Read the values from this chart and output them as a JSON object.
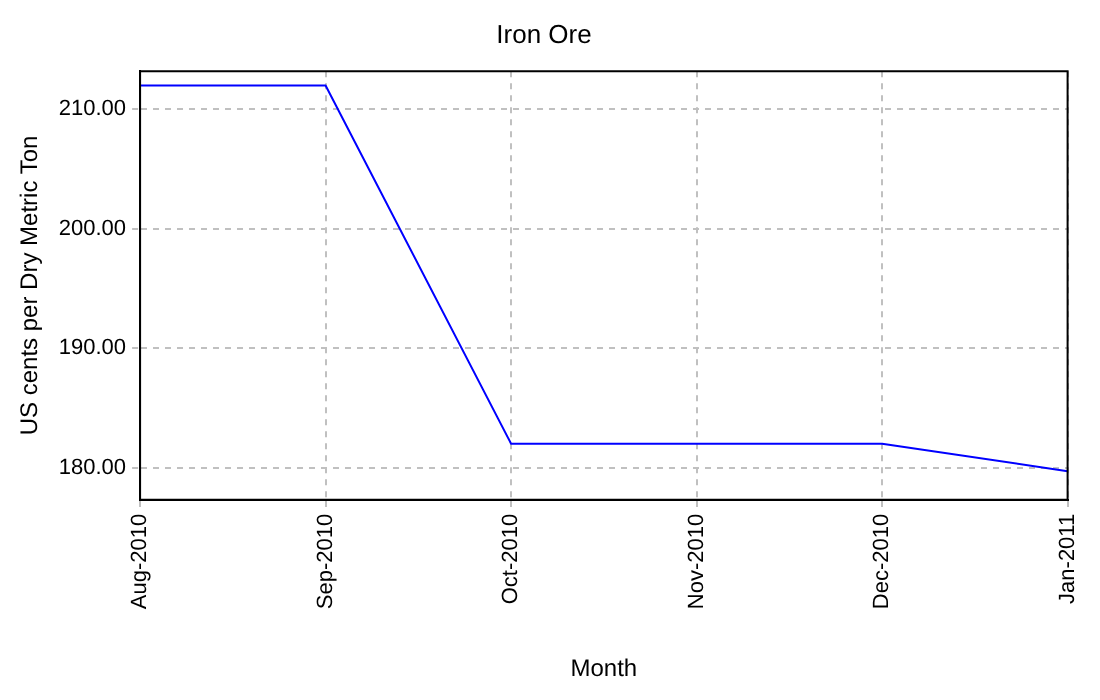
{
  "chart_data": {
    "type": "line",
    "title": "Iron Ore",
    "xlabel": "Month",
    "ylabel": "US cents per Dry Metric Ton",
    "categories": [
      "Aug-2010",
      "Sep-2010",
      "Oct-2010",
      "Nov-2010",
      "Dec-2010",
      "Jan-2011"
    ],
    "series": [
      {
        "color": "#0000ff",
        "values": [
          212,
          212,
          182,
          182,
          182,
          179.7
        ]
      }
    ],
    "ylim": [
      177.3,
      213.2
    ],
    "yticks": [
      {
        "value": 180,
        "label": "180.00"
      },
      {
        "value": 190,
        "label": "190.00"
      },
      {
        "value": 200,
        "label": "200.00"
      },
      {
        "value": 210,
        "label": "210.00"
      }
    ],
    "grid": true,
    "legend": false,
    "marker": "none",
    "line_style": "solid"
  }
}
